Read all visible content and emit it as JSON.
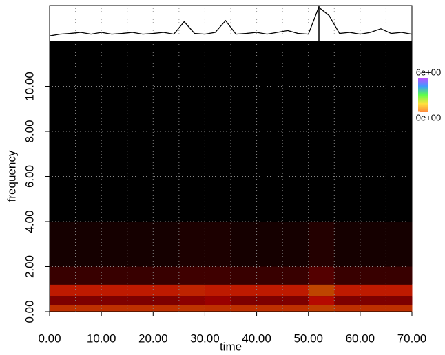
{
  "chart_data": {
    "type": "spectrogram",
    "x_label": "time",
    "y_label": "frequency",
    "xlim": [
      0,
      70
    ],
    "ylim": [
      0,
      12
    ],
    "xticks": [
      {
        "value": 0,
        "label": "0.00"
      },
      {
        "value": 10,
        "label": "10.00"
      },
      {
        "value": 20,
        "label": "20.00"
      },
      {
        "value": 30,
        "label": "30.00"
      },
      {
        "value": 40,
        "label": "40.00"
      },
      {
        "value": 50,
        "label": "50.00"
      },
      {
        "value": 60,
        "label": "60.00"
      },
      {
        "value": 70,
        "label": "70.00"
      }
    ],
    "yticks": [
      {
        "value": 0,
        "label": "0.00"
      },
      {
        "value": 2,
        "label": "2.00"
      },
      {
        "value": 4,
        "label": "4.00"
      },
      {
        "value": 6,
        "label": "6.00"
      },
      {
        "value": 8,
        "label": "8.00"
      },
      {
        "value": 10,
        "label": "10.00"
      }
    ],
    "grid_x": [
      5,
      10,
      15,
      20,
      25,
      30,
      35,
      40,
      45,
      50,
      55,
      60,
      65
    ],
    "grid_y": [
      2,
      4,
      6,
      8,
      10
    ],
    "grid": true,
    "time_edges": [
      0,
      5,
      10,
      15,
      20,
      25,
      30,
      35,
      40,
      45,
      50,
      55,
      60,
      65,
      70
    ],
    "freq_edges": [
      0,
      0.3,
      0.7,
      1.2,
      2,
      4,
      12
    ],
    "z": [
      [
        3.5,
        3.5,
        3.5,
        3.5,
        3.5,
        3.6,
        3.5,
        3.5,
        3.5,
        3.5,
        3.8,
        3.5,
        3.5,
        3.5
      ],
      [
        1.8,
        1.8,
        1.8,
        1.8,
        1.8,
        2.0,
        2.2,
        1.8,
        1.8,
        1.8,
        2.6,
        1.8,
        1.8,
        1.8
      ],
      [
        3.0,
        3.0,
        3.0,
        3.0,
        3.0,
        3.2,
        3.0,
        3.0,
        3.0,
        3.0,
        4.0,
        3.0,
        3.0,
        3.0
      ],
      [
        0.8,
        0.8,
        0.8,
        0.8,
        0.8,
        0.9,
        0.9,
        0.8,
        0.8,
        0.8,
        1.2,
        0.8,
        0.8,
        0.8
      ],
      [
        0.3,
        0.3,
        0.3,
        0.3,
        0.3,
        0.4,
        0.4,
        0.3,
        0.3,
        0.3,
        0.5,
        0.3,
        0.3,
        0.3
      ],
      [
        0,
        0,
        0,
        0,
        0,
        0,
        0,
        0,
        0,
        0,
        0,
        0,
        0,
        0
      ]
    ],
    "zlim": [
      0,
      6
    ],
    "colorbar": {
      "colors": [
        "#ff8a3d",
        "#ffe23d",
        "#5dff4a",
        "#3d9bff",
        "#c64dff"
      ],
      "ticks": [
        {
          "value": 6,
          "label": "6e+00"
        },
        {
          "value": 0,
          "label": "0e+00"
        }
      ]
    },
    "waveform": {
      "ylim": [
        0,
        1
      ],
      "x": [
        0,
        2,
        4,
        6,
        8,
        10,
        12,
        14,
        16,
        18,
        20,
        22,
        24,
        26,
        28,
        30,
        32,
        34,
        36,
        38,
        40,
        42,
        44,
        46,
        48,
        50,
        52,
        54,
        56,
        58,
        60,
        62,
        64,
        66,
        68,
        70
      ],
      "values": [
        0.15,
        0.2,
        0.22,
        0.25,
        0.2,
        0.25,
        0.2,
        0.22,
        0.25,
        0.2,
        0.22,
        0.25,
        0.2,
        0.55,
        0.22,
        0.2,
        0.25,
        0.58,
        0.2,
        0.22,
        0.25,
        0.2,
        0.25,
        0.3,
        0.22,
        0.2,
        0.95,
        0.72,
        0.22,
        0.25,
        0.2,
        0.25,
        0.35,
        0.22,
        0.25,
        0.2
      ]
    }
  }
}
